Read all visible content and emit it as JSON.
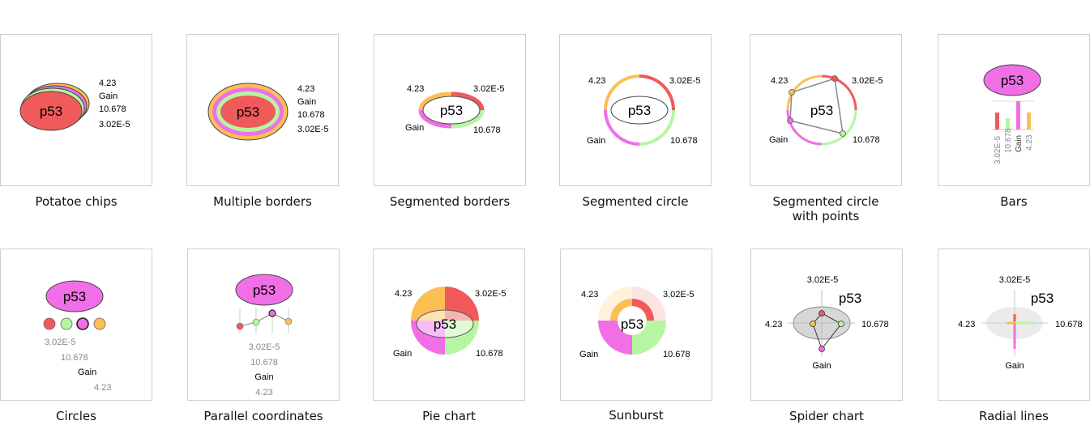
{
  "node_label": "p53",
  "values": {
    "val_a": "4.23",
    "val_b": "3.02E-5",
    "val_c": "10.678",
    "val_d": "Gain"
  },
  "colors": {
    "red": "#f05a5a",
    "orange": "#fbbf56",
    "green": "#b6f5a1",
    "pink": "#f06ee6"
  },
  "captions": {
    "potato": "Potatoe chips",
    "multi": "Multiple borders",
    "segborders": "Segmented borders",
    "segcircle": "Segmented circle",
    "segpoints_1": "Segmented circle",
    "segpoints_2": "with points",
    "bars": "Bars",
    "circles": "Circles",
    "parallel": "Parallel coordinates",
    "pie": "Pie chart",
    "sunburst": "Sunburst",
    "spider": "Spider chart",
    "radial": "Radial lines"
  }
}
